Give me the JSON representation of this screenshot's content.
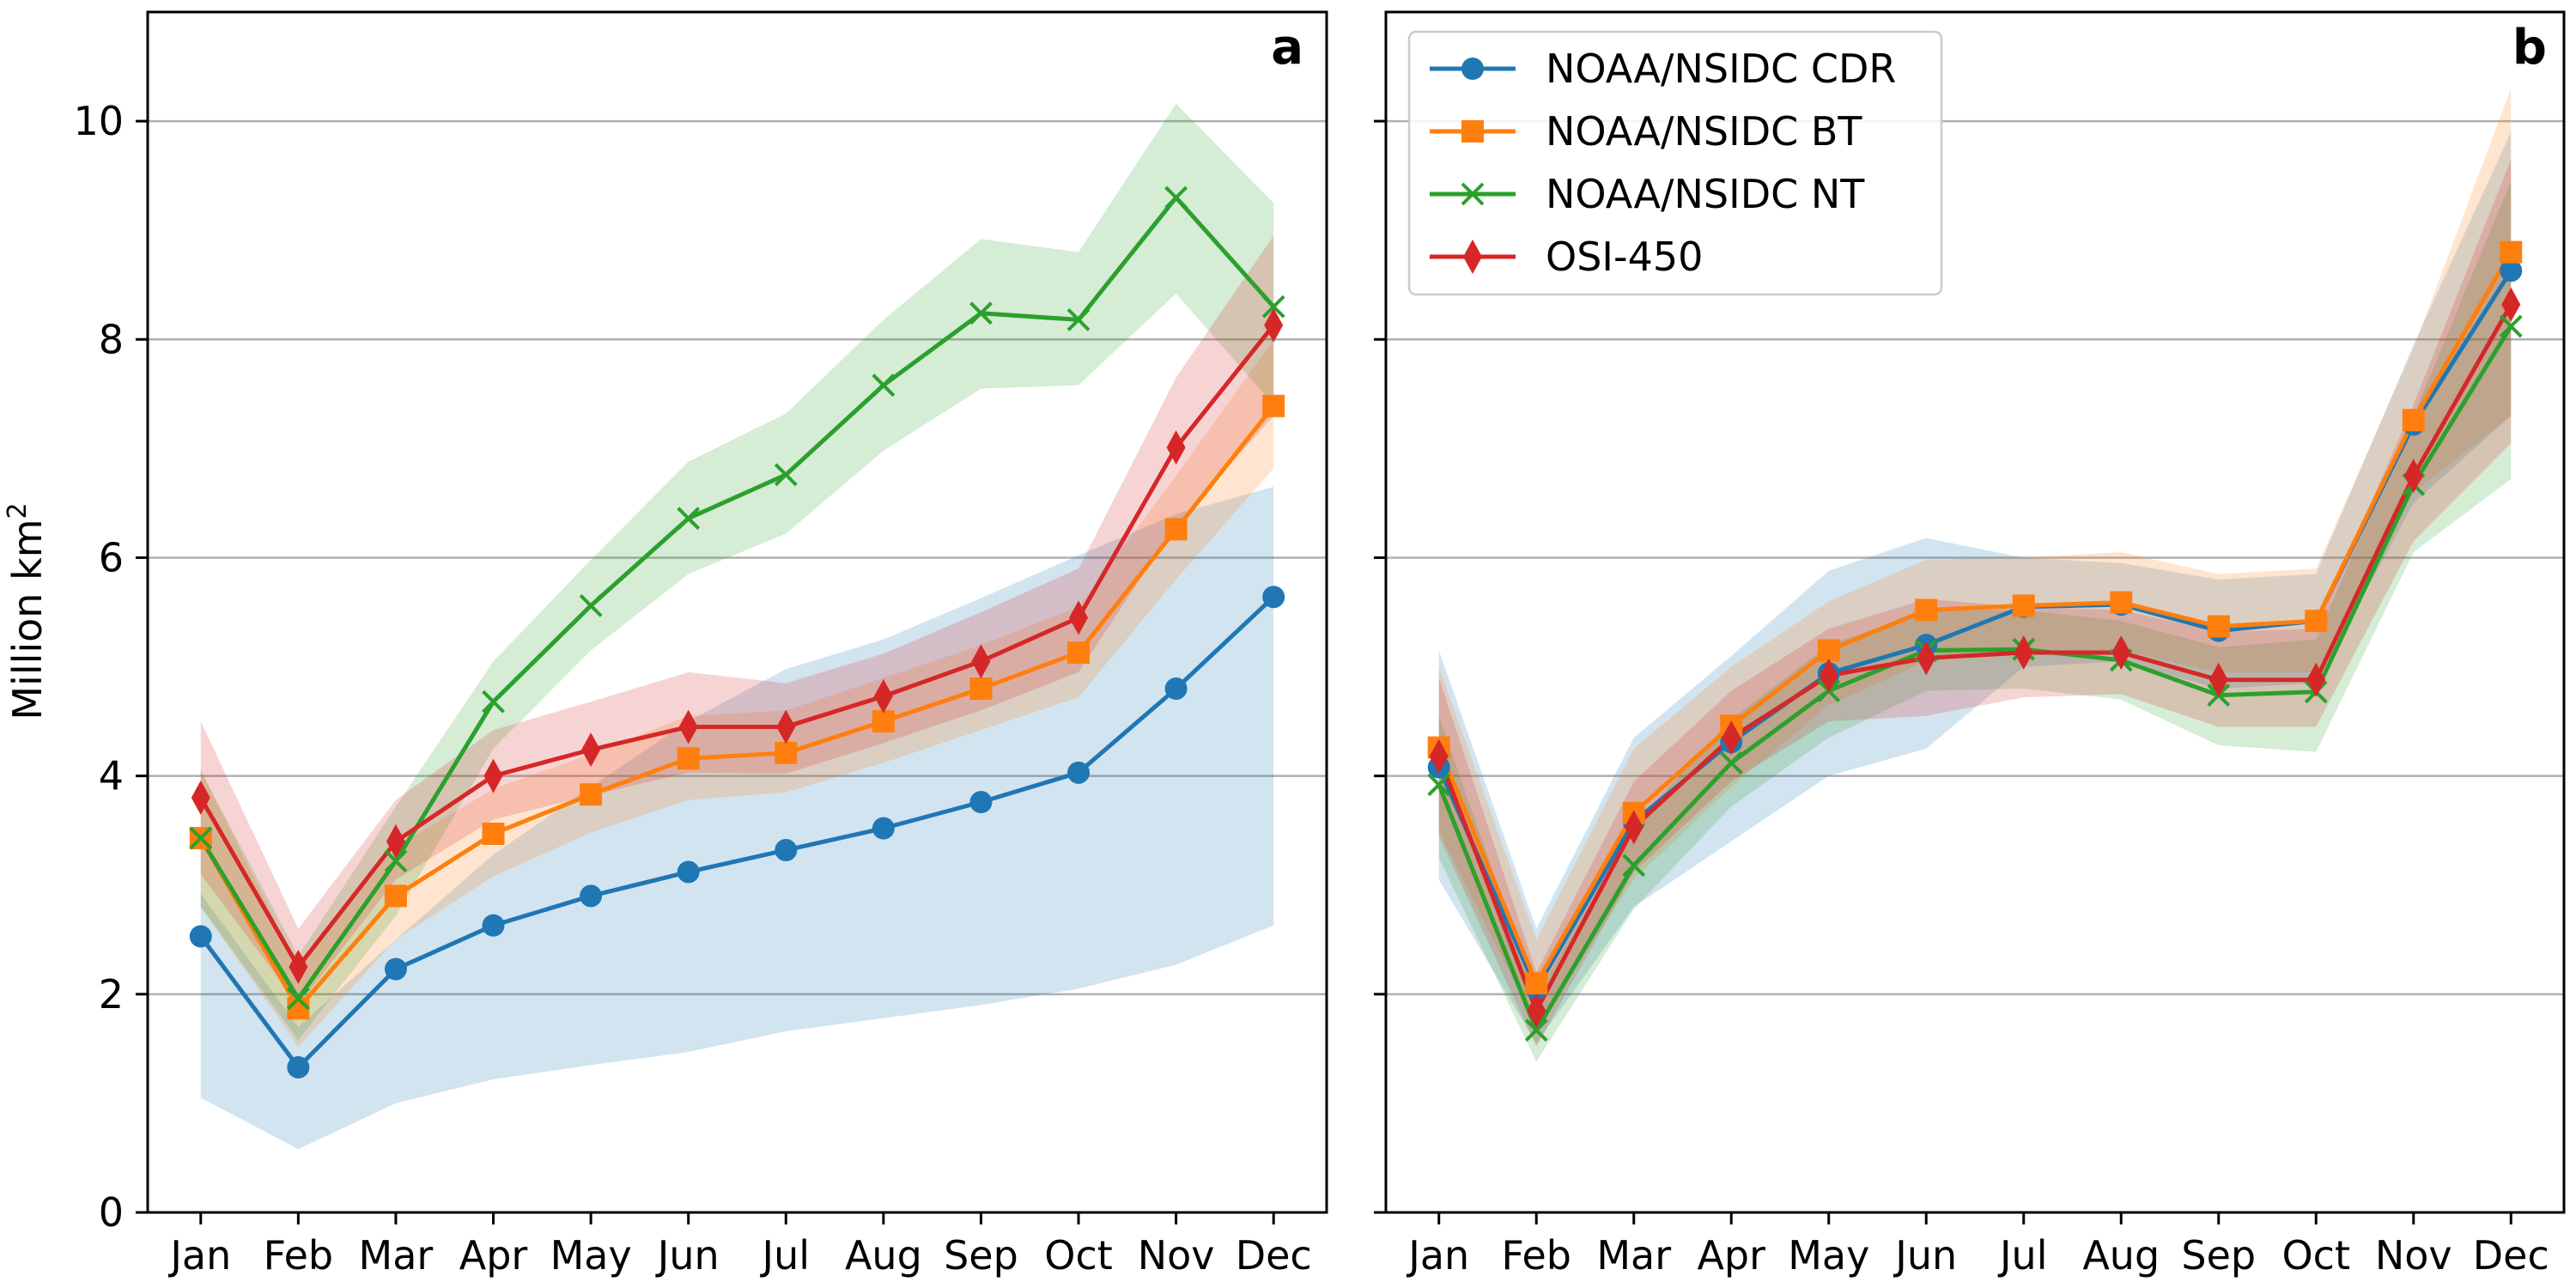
{
  "chart_data": [
    {
      "type": "line",
      "panel_label": "a",
      "categories": [
        "Jan",
        "Feb",
        "Mar",
        "Apr",
        "May",
        "Jun",
        "Jul",
        "Aug",
        "Sep",
        "Oct",
        "Nov",
        "Dec"
      ],
      "ylabel": "Million km",
      "ylabel_superscript": "2",
      "ylim": [
        0,
        11
      ],
      "yticks": [
        "0",
        "2",
        "4",
        "6",
        "8",
        "10"
      ],
      "grid": "horizontal",
      "legend": "none",
      "series": [
        {
          "name": "NOAA/NSIDC CDR",
          "color": "#1f77b4",
          "marker": "circle",
          "values": [
            2.53,
            1.33,
            2.23,
            2.63,
            2.9,
            3.12,
            3.32,
            3.52,
            3.76,
            4.03,
            4.8,
            5.64
          ],
          "lower": [
            1.05,
            0.58,
            1.0,
            1.22,
            1.35,
            1.47,
            1.66,
            1.78,
            1.9,
            2.05,
            2.27,
            2.63
          ],
          "upper": [
            2.92,
            1.7,
            2.5,
            3.28,
            3.9,
            4.5,
            4.98,
            5.25,
            5.63,
            6.02,
            6.4,
            6.65
          ]
        },
        {
          "name": "NOAA/NSIDC BT",
          "color": "#ff7f0e",
          "marker": "square",
          "values": [
            3.43,
            1.87,
            2.9,
            3.47,
            3.83,
            4.16,
            4.21,
            4.5,
            4.8,
            5.13,
            6.26,
            7.39
          ],
          "lower": [
            2.8,
            1.52,
            2.5,
            3.08,
            3.48,
            3.78,
            3.85,
            4.12,
            4.42,
            4.72,
            5.8,
            6.82
          ],
          "upper": [
            4.05,
            2.25,
            3.35,
            3.88,
            4.2,
            4.55,
            4.6,
            4.9,
            5.2,
            5.55,
            6.75,
            8.0
          ]
        },
        {
          "name": "NOAA/NSIDC NT",
          "color": "#2ca02c",
          "marker": "x",
          "values": [
            3.43,
            1.96,
            3.22,
            4.68,
            5.56,
            6.36,
            6.76,
            7.58,
            8.24,
            8.18,
            9.3,
            8.3
          ],
          "lower": [
            2.8,
            1.58,
            2.72,
            4.25,
            5.15,
            5.85,
            6.22,
            6.98,
            7.55,
            7.58,
            8.42,
            7.4
          ],
          "upper": [
            4.05,
            2.35,
            3.72,
            5.05,
            5.98,
            6.88,
            7.32,
            8.18,
            8.92,
            8.8,
            10.16,
            9.25
          ]
        },
        {
          "name": "OSI-450",
          "color": "#d62728",
          "marker": "diamond",
          "values": [
            3.8,
            2.25,
            3.4,
            4.0,
            4.24,
            4.45,
            4.45,
            4.73,
            5.05,
            5.45,
            7.01,
            8.13
          ],
          "lower": [
            3.1,
            1.9,
            3.05,
            3.6,
            3.82,
            4.03,
            4.02,
            4.3,
            4.6,
            4.95,
            6.3,
            7.3
          ],
          "upper": [
            4.5,
            2.6,
            3.78,
            4.42,
            4.68,
            4.95,
            4.85,
            5.12,
            5.5,
            5.9,
            7.65,
            8.95
          ]
        }
      ]
    },
    {
      "type": "line",
      "panel_label": "b",
      "categories": [
        "Jan",
        "Feb",
        "Mar",
        "Apr",
        "May",
        "Jun",
        "Jul",
        "Aug",
        "Sep",
        "Oct",
        "Nov",
        "Dec"
      ],
      "ylim": [
        0,
        11
      ],
      "grid": "horizontal",
      "legend": "top-left",
      "series": [
        {
          "name": "NOAA/NSIDC CDR",
          "color": "#1f77b4",
          "marker": "circle",
          "values": [
            4.08,
            2.05,
            3.58,
            4.31,
            4.94,
            5.2,
            5.55,
            5.57,
            5.33,
            5.42,
            7.22,
            8.63
          ],
          "lower": [
            3.05,
            1.55,
            2.8,
            3.4,
            4.0,
            4.25,
            5.0,
            5.05,
            4.8,
            4.85,
            6.5,
            7.3
          ],
          "upper": [
            5.15,
            2.6,
            4.35,
            5.1,
            5.88,
            6.18,
            6.0,
            5.95,
            5.8,
            5.85,
            7.95,
            9.9
          ]
        },
        {
          "name": "NOAA/NSIDC BT",
          "color": "#ff7f0e",
          "marker": "square",
          "values": [
            4.26,
            2.1,
            3.66,
            4.46,
            5.15,
            5.52,
            5.56,
            5.59,
            5.37,
            5.42,
            7.26,
            8.8
          ],
          "lower": [
            3.5,
            1.7,
            3.05,
            3.9,
            4.65,
            5.05,
            5.15,
            5.15,
            4.95,
            4.95,
            6.6,
            7.3
          ],
          "upper": [
            5.0,
            2.5,
            4.25,
            5.0,
            5.6,
            5.98,
            6.0,
            6.05,
            5.85,
            5.9,
            7.92,
            10.3
          ]
        },
        {
          "name": "NOAA/NSIDC NT",
          "color": "#2ca02c",
          "marker": "x",
          "values": [
            3.92,
            1.67,
            3.18,
            4.12,
            4.78,
            5.15,
            5.16,
            5.06,
            4.74,
            4.77,
            6.67,
            8.12
          ],
          "lower": [
            3.25,
            1.38,
            2.78,
            3.72,
            4.35,
            4.78,
            4.8,
            4.7,
            4.28,
            4.22,
            6.05,
            6.72
          ],
          "upper": [
            4.55,
            1.98,
            3.55,
            4.52,
            5.2,
            5.52,
            5.52,
            5.42,
            5.18,
            5.25,
            7.3,
            9.45
          ]
        },
        {
          "name": "OSI-450",
          "color": "#d62728",
          "marker": "diamond",
          "values": [
            4.18,
            1.85,
            3.53,
            4.35,
            4.92,
            5.08,
            5.13,
            5.13,
            4.88,
            4.88,
            6.75,
            8.32
          ],
          "lower": [
            3.45,
            1.52,
            3.12,
            3.95,
            4.5,
            4.55,
            4.72,
            4.75,
            4.45,
            4.45,
            6.15,
            7.05
          ],
          "upper": [
            4.9,
            2.2,
            3.95,
            4.78,
            5.35,
            5.62,
            5.55,
            5.52,
            5.32,
            5.35,
            7.4,
            9.65
          ]
        }
      ]
    }
  ]
}
